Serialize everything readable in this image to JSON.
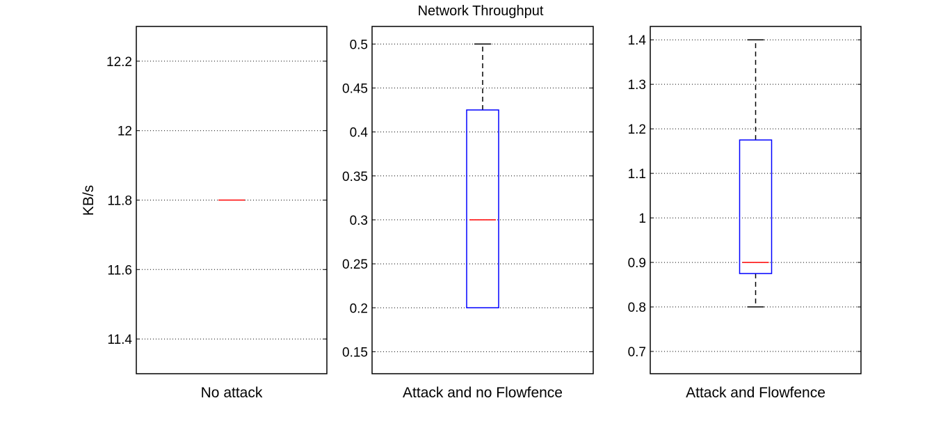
{
  "chart_data": {
    "type": "box",
    "title": "Network Throughput",
    "ylabel": "KB/s",
    "colors": {
      "box": "#0000ff",
      "median": "#ff0000",
      "whisker": "#000000",
      "grid": "#000000"
    },
    "grid": "horizontal-dotted",
    "panels": [
      {
        "category": "No attack",
        "ylim": [
          11.3,
          12.3
        ],
        "yticks": [
          11.4,
          11.6,
          11.8,
          12.0,
          12.2
        ],
        "ytick_labels": [
          "11.4",
          "11.6",
          "11.8",
          "12",
          "12.2"
        ],
        "stats": {
          "min": 11.8,
          "q1": 11.8,
          "median": 11.8,
          "q3": 11.8,
          "max": 11.8
        }
      },
      {
        "category": "Attack and no Flowfence",
        "ylim": [
          0.125,
          0.52
        ],
        "yticks": [
          0.15,
          0.2,
          0.25,
          0.3,
          0.35,
          0.4,
          0.45,
          0.5
        ],
        "ytick_labels": [
          "0.15",
          "0.2",
          "0.25",
          "0.3",
          "0.35",
          "0.4",
          "0.45",
          "0.5"
        ],
        "stats": {
          "min": 0.2,
          "q1": 0.2,
          "median": 0.3,
          "q3": 0.425,
          "max": 0.5
        }
      },
      {
        "category": "Attack and Flowfence",
        "ylim": [
          0.65,
          1.43
        ],
        "yticks": [
          0.7,
          0.8,
          0.9,
          1.0,
          1.1,
          1.2,
          1.3,
          1.4
        ],
        "ytick_labels": [
          "0.7",
          "0.8",
          "0.9",
          "1",
          "1.1",
          "1.2",
          "1.3",
          "1.4"
        ],
        "stats": {
          "min": 0.8,
          "q1": 0.875,
          "median": 0.9,
          "q3": 1.175,
          "max": 1.4
        }
      }
    ]
  }
}
